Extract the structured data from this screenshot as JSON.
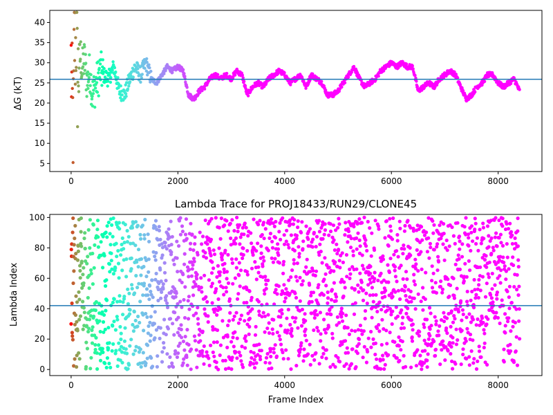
{
  "chart_data": [
    {
      "type": "scatter",
      "title": "",
      "xlabel": "",
      "ylabel": "ΔG (kT)",
      "xlim": [
        -400,
        8820
      ],
      "ylim": [
        3,
        43
      ],
      "xticks": [
        0,
        2000,
        4000,
        6000,
        8000
      ],
      "xtick_labels": [
        "0",
        "2000",
        "4000",
        "6000",
        "8000"
      ],
      "yticks": [
        5,
        10,
        15,
        20,
        25,
        30,
        35,
        40
      ],
      "ytick_labels": [
        "5",
        "10",
        "15",
        "20",
        "25",
        "30",
        "35",
        "40"
      ],
      "hline": 25.9,
      "hline_color": "#1f77b4",
      "colormap": "rainbow",
      "grid": false,
      "legend": "none",
      "n_frames": 8400,
      "series": [
        {
          "x": [
            0,
            20,
            40,
            60,
            80,
            100,
            120,
            150,
            180,
            200,
            250,
            300,
            350,
            400,
            450,
            500,
            550,
            600,
            700,
            800,
            900,
            1000,
            1100,
            1200,
            1300,
            1400,
            1500,
            1600,
            1700,
            1800,
            1900,
            2000,
            2100,
            2200,
            2300,
            2400,
            2500,
            2600,
            2700,
            2800,
            2900,
            3000,
            3100,
            3200,
            3300,
            3400,
            3500,
            3600,
            3700,
            3800,
            3900,
            4000,
            4100,
            4200,
            4300,
            4400,
            4500,
            4600,
            4700,
            4800,
            4900,
            5000,
            5100,
            5200,
            5300,
            5400,
            5500,
            5600,
            5700,
            5800,
            5900,
            6000,
            6100,
            6200,
            6300,
            6400,
            6500,
            6600,
            6700,
            6800,
            6900,
            7000,
            7100,
            7200,
            7300,
            7400,
            7500,
            7600,
            7700,
            7800,
            7900,
            8000,
            8100,
            8200,
            8300,
            8400
          ],
          "y": [
            30,
            20,
            13,
            36,
            33,
            38,
            25,
            30,
            32,
            28,
            31,
            25,
            28,
            22,
            24,
            26,
            28,
            27,
            26,
            29,
            23,
            22,
            26,
            29,
            27,
            30,
            26,
            25,
            27,
            29,
            28,
            29,
            28,
            22,
            21,
            23,
            24,
            26,
            27,
            26,
            27,
            26,
            28,
            27,
            22,
            24,
            25,
            24,
            26,
            27,
            28,
            27,
            25,
            26,
            27,
            24,
            27,
            26,
            25,
            22,
            22,
            23,
            25,
            27,
            29,
            26,
            24,
            25,
            26,
            28,
            29,
            30,
            29,
            30,
            29,
            29,
            23,
            24,
            25,
            24,
            26,
            27,
            28,
            27,
            24,
            21,
            22,
            24,
            25,
            27,
            27,
            25,
            24,
            25,
            26,
            23
          ]
        }
      ]
    },
    {
      "type": "scatter",
      "title": "Lambda Trace for PROJ18433/RUN29/CLONE45",
      "xlabel": "Frame Index",
      "ylabel": "Lambda Index",
      "xlim": [
        -400,
        8820
      ],
      "ylim": [
        -4,
        102
      ],
      "xticks": [
        0,
        2000,
        4000,
        6000,
        8000
      ],
      "xtick_labels": [
        "0",
        "2000",
        "4000",
        "6000",
        "8000"
      ],
      "yticks": [
        0,
        20,
        40,
        60,
        80,
        100
      ],
      "ytick_labels": [
        "0",
        "20",
        "40",
        "60",
        "80",
        "100"
      ],
      "hline": 42,
      "hline_color": "#1f77b4",
      "colormap": "rainbow",
      "grid": false,
      "legend": "none",
      "n_frames": 8400,
      "series": [
        {
          "x": [
            0,
            100,
            200,
            300,
            400,
            500,
            600,
            700,
            800,
            900,
            1000,
            1100,
            1200,
            1300,
            1400,
            1500,
            1600,
            1700,
            1800,
            1900,
            2000,
            2100,
            2200,
            2300,
            2400,
            2500,
            2600,
            2700,
            2800,
            2900,
            3000,
            3100,
            3200,
            3300,
            3400,
            3500,
            3600,
            3700,
            3800,
            3900,
            4000,
            4100,
            4200,
            4300,
            4400,
            4500,
            4600,
            4700,
            4800,
            4900,
            5000,
            5100,
            5200,
            5300,
            5400,
            5500,
            5600,
            5700,
            5800,
            5900,
            6000,
            6100,
            6200,
            6300,
            6400,
            6500,
            6600,
            6700,
            6800,
            6900,
            7000,
            7100,
            7200,
            7300,
            7400,
            7500,
            7600,
            7700,
            7800,
            7900,
            8000,
            8100,
            8200,
            8300,
            8400
          ],
          "y": [
            50,
            45,
            55,
            40,
            60,
            35,
            50,
            45,
            55,
            40,
            50,
            45,
            55,
            42,
            48,
            50,
            45,
            52,
            40,
            48,
            50,
            46,
            44,
            42,
            40,
            38,
            45,
            50,
            48,
            52,
            50,
            45,
            55,
            50,
            45,
            48,
            52,
            50,
            45,
            48,
            55,
            60,
            50,
            45,
            48,
            50,
            45,
            50,
            40,
            45,
            42,
            40,
            45,
            50,
            48,
            45,
            50,
            45,
            48,
            50,
            45,
            50,
            52,
            48,
            50,
            55,
            45,
            42,
            40,
            45,
            50,
            48,
            45,
            50,
            40,
            38,
            42,
            45,
            50,
            55,
            75,
            60,
            50,
            48,
            45
          ]
        }
      ]
    }
  ]
}
